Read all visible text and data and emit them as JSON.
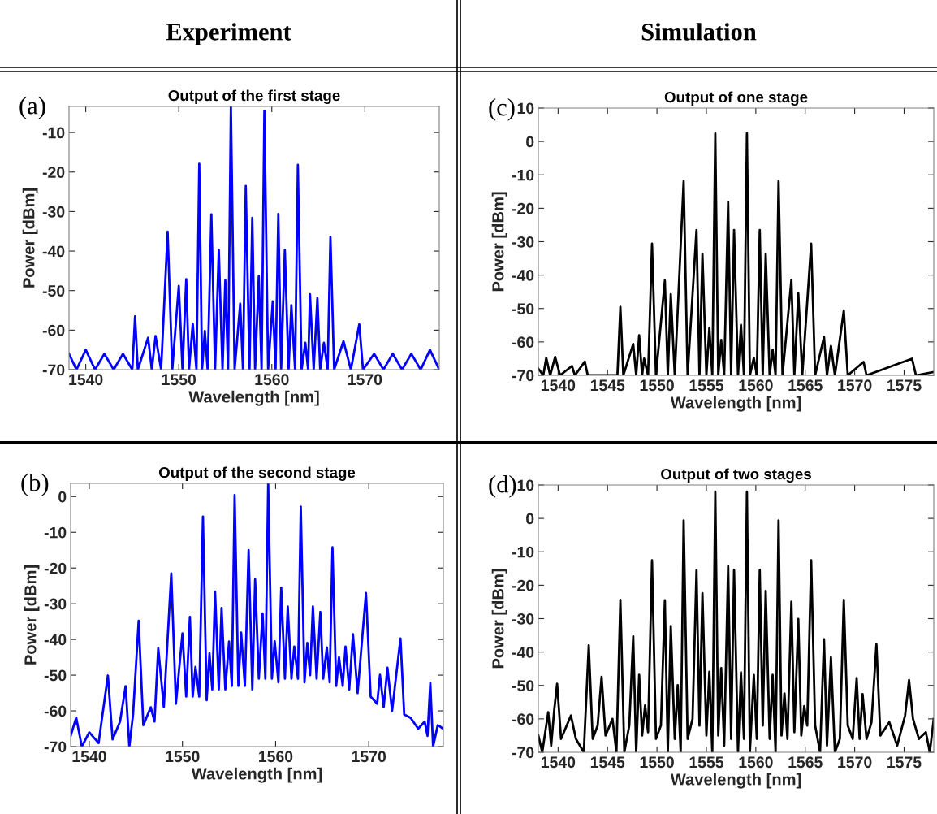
{
  "chart_data": [
    {
      "type": "line",
      "title": "Output of the first stage",
      "xlabel": "Wavelength [nm]",
      "ylabel": "Power [dBm]",
      "annotations": [
        "(a)",
        "Experiment"
      ],
      "xlim": [
        1538.2,
        1578
      ],
      "ylim": [
        -70,
        -3.4
      ],
      "xticks": [
        1540,
        1550,
        1560,
        1570
      ],
      "yticks": [
        -70,
        -60,
        -50,
        -40,
        -30,
        -20,
        -10
      ],
      "line_style": "solid",
      "series": [
        {
          "color": "#0000ff",
          "x": [
            1538.2,
            1539,
            1540,
            1541,
            1542,
            1543,
            1544,
            1545,
            1545.3,
            1545.6,
            1546.7,
            1547.1,
            1547.5,
            1548.1,
            1548.8,
            1549.3,
            1550.0,
            1550.4,
            1550.8,
            1551.1,
            1551.5,
            1551.9,
            1552.2,
            1552.5,
            1552.8,
            1553.1,
            1553.5,
            1553.9,
            1554.3,
            1554.7,
            1555.0,
            1555.3,
            1555.6,
            1556.0,
            1556.6,
            1556.9,
            1557.2,
            1557.6,
            1557.9,
            1558.2,
            1558.6,
            1558.9,
            1559.2,
            1559.6,
            1560.1,
            1560.4,
            1560.7,
            1561.0,
            1561.4,
            1561.8,
            1562.1,
            1562.5,
            1562.8,
            1563.2,
            1563.6,
            1563.9,
            1564.1,
            1564.5,
            1564.9,
            1565.2,
            1565.6,
            1566.0,
            1566.3,
            1566.7,
            1567.7,
            1568.5,
            1569.4,
            1569.8,
            1571,
            1572,
            1573,
            1574,
            1575,
            1576,
            1577,
            1578
          ],
          "values": [
            -66,
            -70,
            -65,
            -70,
            -66,
            -70,
            -66,
            -70,
            -56.5,
            -70,
            -61.9,
            -70,
            -61.5,
            -70,
            -35.1,
            -70,
            -48.8,
            -70,
            -47.1,
            -70,
            -58.4,
            -70,
            -17.9,
            -70,
            -60.2,
            -70,
            -30.7,
            -70,
            -39.7,
            -70,
            -47.4,
            -70,
            -3.4,
            -70,
            -53.3,
            -70,
            -23.5,
            -70,
            -31.6,
            -70,
            -46.3,
            -70,
            -4.5,
            -70,
            -52.7,
            -70,
            -30.6,
            -70,
            -39.7,
            -70,
            -53.7,
            -70,
            -18.2,
            -70,
            -63.2,
            -70,
            -50.9,
            -70,
            -51.9,
            -70,
            -63.2,
            -70,
            -36.4,
            -70,
            -62.8,
            -70,
            -58.5,
            -70,
            -66,
            -70,
            -66,
            -70,
            -66,
            -70,
            -65,
            -70
          ]
        }
      ]
    },
    {
      "type": "line",
      "title": "Output of one stage",
      "xlabel": "Wavelength [nm]",
      "ylabel": "Power [dBm]",
      "annotations": [
        "(c)",
        "Simulation"
      ],
      "xlim": [
        1538,
        1578
      ],
      "ylim": [
        -70,
        10
      ],
      "xticks": [
        1540,
        1545,
        1550,
        1555,
        1560,
        1565,
        1570,
        1575
      ],
      "yticks": [
        -70,
        -60,
        -50,
        -40,
        -30,
        -20,
        -10,
        0,
        10
      ],
      "line_style": "solid",
      "series": [
        {
          "color": "#000000",
          "x": [
            1538,
            1538.5,
            1538.8,
            1539.2,
            1539.7,
            1540.2,
            1541.4,
            1541.7,
            1542.7,
            1543.0,
            1546.0,
            1546.3,
            1546.6,
            1547.6,
            1547.9,
            1548.2,
            1548.5,
            1548.7,
            1549.1,
            1549.5,
            1549.9,
            1550.8,
            1551.1,
            1551.4,
            1551.8,
            1552.7,
            1553.1,
            1554.0,
            1554.3,
            1554.6,
            1555.0,
            1555.3,
            1555.6,
            1555.9,
            1556.2,
            1556.5,
            1556.8,
            1557.2,
            1557.5,
            1557.8,
            1558.2,
            1558.5,
            1558.8,
            1559.1,
            1559.4,
            1559.8,
            1560.1,
            1560.4,
            1560.7,
            1561.0,
            1561.4,
            1561.7,
            1562.0,
            1562.3,
            1562.7,
            1563.6,
            1563.9,
            1564.3,
            1564.7,
            1565.6,
            1566.0,
            1566.9,
            1567.2,
            1567.6,
            1568.0,
            1568.9,
            1569.3,
            1570.9,
            1571.2,
            1575.8,
            1576.2,
            1578
          ],
          "values": [
            -68,
            -70,
            -64.8,
            -70,
            -64.5,
            -70,
            -67.2,
            -70,
            -65.9,
            -70,
            -70,
            -49.5,
            -70,
            -60.6,
            -70,
            -58,
            -70,
            -65,
            -70,
            -30.6,
            -70,
            -41.6,
            -70,
            -45.7,
            -70,
            -11.9,
            -70,
            -26.5,
            -70,
            -33.7,
            -70,
            -55.8,
            -70,
            2.4,
            -70,
            -59.4,
            -70,
            -18.1,
            -70,
            -26.5,
            -70,
            -54.9,
            -70,
            2.4,
            -70,
            -64.8,
            -70,
            -26.5,
            -70,
            -33.7,
            -70,
            -62.3,
            -70,
            -11.9,
            -70,
            -41.4,
            -70,
            -45.5,
            -70,
            -30.6,
            -70,
            -58.5,
            -70,
            -61.2,
            -70,
            -50.6,
            -70,
            -66,
            -70,
            -65,
            -70,
            -69
          ]
        }
      ]
    },
    {
      "type": "line",
      "title": "Output of the second stage",
      "xlabel": "Wavelength [nm]",
      "ylabel": "Power [dBm]",
      "annotations": [
        "(b)"
      ],
      "xlim": [
        1538,
        1578
      ],
      "ylim": [
        -70,
        3.7
      ],
      "xticks": [
        1540,
        1550,
        1560,
        1570
      ],
      "yticks": [
        -70,
        -60,
        -50,
        -40,
        -30,
        -20,
        -10,
        0
      ],
      "line_style": "solid",
      "series": [
        {
          "color": "#0000ff",
          "x": [
            1538,
            1538.6,
            1539.2,
            1540,
            1541,
            1542.0,
            1542.5,
            1543.3,
            1543.9,
            1544.3,
            1544.7,
            1545.3,
            1545.8,
            1546.6,
            1547.0,
            1547.4,
            1548.0,
            1548.8,
            1549.3,
            1550.0,
            1550.4,
            1550.8,
            1551.1,
            1551.4,
            1551.8,
            1552.2,
            1552.6,
            1552.9,
            1553.2,
            1553.5,
            1553.9,
            1554.2,
            1554.6,
            1555.0,
            1555.3,
            1555.6,
            1556.0,
            1556.3,
            1556.7,
            1557.1,
            1557.5,
            1557.8,
            1558.2,
            1558.6,
            1558.9,
            1559.2,
            1559.6,
            1559.9,
            1560.3,
            1560.6,
            1561.0,
            1561.3,
            1561.7,
            1562.0,
            1562.4,
            1562.7,
            1563.1,
            1563.4,
            1563.7,
            1564.0,
            1564.4,
            1564.8,
            1565.1,
            1565.5,
            1565.8,
            1566.1,
            1566.5,
            1566.8,
            1567.2,
            1567.5,
            1567.9,
            1568.3,
            1568.8,
            1569.7,
            1570.2,
            1570.9,
            1571.2,
            1571.6,
            1572.0,
            1572.5,
            1573.4,
            1573.8,
            1574.5,
            1575.3,
            1576.0,
            1576.3,
            1576.6,
            1576.9,
            1577.4,
            1578
          ],
          "values": [
            -67,
            -61.9,
            -70,
            -66,
            -69,
            -50.1,
            -68,
            -63,
            -53.1,
            -70,
            -61,
            -34.8,
            -64,
            -59,
            -63,
            -42.4,
            -59,
            -21.5,
            -58,
            -38.3,
            -56,
            -33.7,
            -56,
            -47.7,
            -56,
            -5.6,
            -57,
            -43.9,
            -54,
            -26.6,
            -54,
            -31.2,
            -54,
            -40.6,
            -53,
            0.4,
            -53,
            -38.1,
            -53,
            -15.0,
            -54,
            -23.2,
            -51,
            -32.7,
            -51,
            3.7,
            -51,
            -40.5,
            -52,
            -25.5,
            -51,
            -30.8,
            -51,
            -42.0,
            -51,
            -2.8,
            -52,
            -41.0,
            -50,
            -30.8,
            -51,
            -32.3,
            -51,
            -42.2,
            -52,
            -14.2,
            -53,
            -45.0,
            -53,
            -42.0,
            -54,
            -38.5,
            -55,
            -27.0,
            -56,
            -58,
            -49.9,
            -59,
            -47.9,
            -60,
            -39.7,
            -61,
            -62,
            -65,
            -63,
            -67,
            -52.2,
            -70,
            -64,
            -65
          ]
        }
      ]
    },
    {
      "type": "line",
      "title": "Output of two stages",
      "xlabel": "Wavelength [nm]",
      "ylabel": "Power [dBm]",
      "annotations": [
        "(d)"
      ],
      "xlim": [
        1538,
        1578
      ],
      "ylim": [
        -70,
        10
      ],
      "xticks": [
        1540,
        1545,
        1550,
        1555,
        1560,
        1565,
        1570,
        1575
      ],
      "yticks": [
        -70,
        -60,
        -50,
        -40,
        -30,
        -20,
        -10,
        0,
        10
      ],
      "line_style": "solid",
      "series": [
        {
          "color": "#000000",
          "x": [
            1538,
            1538.4,
            1539.0,
            1539.3,
            1539.6,
            1539.9,
            1540.3,
            1541.3,
            1541.8,
            1542.6,
            1543.1,
            1543.5,
            1544.0,
            1544.4,
            1544.8,
            1545.5,
            1545.9,
            1546.3,
            1546.7,
            1547.2,
            1547.6,
            1547.9,
            1548.2,
            1548.5,
            1548.8,
            1549.1,
            1549.5,
            1549.9,
            1550.4,
            1550.8,
            1551.1,
            1551.4,
            1551.8,
            1552.1,
            1552.4,
            1552.7,
            1553.1,
            1553.6,
            1554.0,
            1554.3,
            1554.6,
            1555.0,
            1555.3,
            1555.6,
            1555.9,
            1556.2,
            1556.5,
            1556.8,
            1557.2,
            1557.5,
            1557.8,
            1558.2,
            1558.5,
            1558.8,
            1559.1,
            1559.4,
            1559.8,
            1560.1,
            1560.4,
            1560.7,
            1561.0,
            1561.4,
            1561.7,
            1562.0,
            1562.3,
            1562.6,
            1562.9,
            1563.2,
            1563.6,
            1563.9,
            1564.3,
            1564.6,
            1564.9,
            1565.2,
            1565.6,
            1566.0,
            1566.5,
            1566.9,
            1567.2,
            1567.6,
            1568.0,
            1568.5,
            1568.9,
            1569.3,
            1569.8,
            1570.2,
            1570.5,
            1570.8,
            1571.2,
            1571.7,
            1572.2,
            1572.6,
            1573.5,
            1574.3,
            1575.1,
            1575.5,
            1575.9,
            1576.5,
            1577.2,
            1577.6,
            1578
          ],
          "values": [
            -65,
            -70,
            -58,
            -68,
            -57.6,
            -49.5,
            -66,
            -59,
            -66,
            -70,
            -38,
            -66,
            -62,
            -47.4,
            -65,
            -60,
            -70,
            -24.4,
            -70,
            -62,
            -35.3,
            -70,
            -46.8,
            -65,
            -56,
            -64,
            -12.5,
            -66,
            -62,
            -24.5,
            -70,
            -32.2,
            -66,
            -49.9,
            -70,
            -0.6,
            -66,
            -60,
            -15.5,
            -62,
            -22.4,
            -65,
            -45.9,
            -70,
            8.0,
            -65,
            -44.8,
            -68,
            -14.3,
            -66,
            -15.4,
            -70,
            -46.1,
            -66,
            8.0,
            -70,
            -46.9,
            -66,
            -15.4,
            -62,
            -21.7,
            -66,
            -46.8,
            -70,
            -0.6,
            -65,
            -52.4,
            -66,
            -24.9,
            -64,
            -30.1,
            -65,
            -56.2,
            -62,
            -12.5,
            -62,
            -70,
            -36.2,
            -68,
            -41.6,
            -70,
            -66,
            -24.4,
            -62,
            -66,
            -47.8,
            -66,
            -52.6,
            -66,
            -61,
            -37.7,
            -65,
            -61,
            -68,
            -59,
            -48.4,
            -60,
            -66,
            -64,
            -70,
            -60
          ]
        }
      ]
    }
  ]
}
